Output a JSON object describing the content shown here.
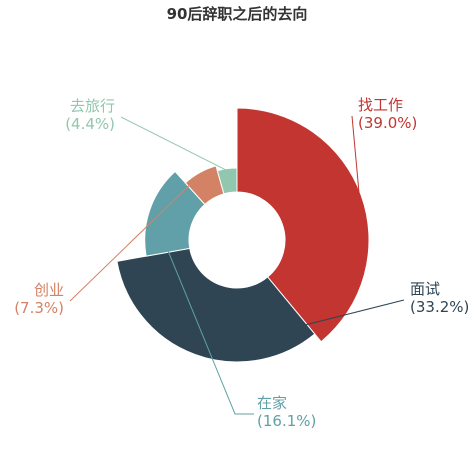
{
  "chart_data": {
    "type": "pie",
    "subtype": "rose",
    "title": "90后辞职之后的去向",
    "slices": [
      {
        "label": "找工作",
        "pct_text": "(39.0%)",
        "value": 39.0,
        "color": "#c23531"
      },
      {
        "label": "面试",
        "pct_text": "(33.2%)",
        "value": 33.2,
        "color": "#2f4554"
      },
      {
        "label": "在家",
        "pct_text": "(16.1%)",
        "value": 16.1,
        "color": "#61a0a8"
      },
      {
        "label": "创业",
        "pct_text": "(7.3%)",
        "value": 7.3,
        "color": "#d48265"
      },
      {
        "label": "去旅行",
        "pct_text": "(4.4%)",
        "value": 4.4,
        "color": "#91c7ae"
      }
    ]
  }
}
